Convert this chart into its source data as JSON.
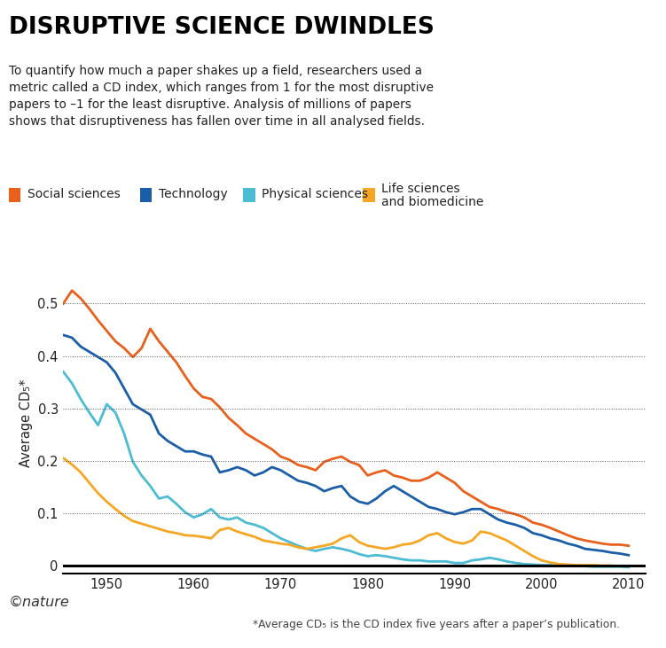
{
  "title": "DISRUPTIVE SCIENCE DWINDLES",
  "subtitle": "To quantify how much a paper shakes up a field, researchers used a\nmetric called a CD index, which ranges from 1 for the most disruptive\npapers to –1 for the least disruptive. Analysis of millions of papers\nshows that disruptiveness has fallen over time in all analysed fields.",
  "ylabel": "Average CD₅*",
  "footnote": "*Average CD₅ is the CD index five years after a paper’s publication.",
  "nature_credit": "©nature",
  "colors": {
    "social": "#E8601C",
    "technology": "#1A5EA8",
    "physical": "#4BBCD4",
    "life": "#F5A623"
  },
  "legend_labels": [
    "Social sciences",
    "Technology",
    "Physical sciences",
    "Life sciences\nand biomedicine"
  ],
  "xlim": [
    1945,
    2012
  ],
  "ylim": [
    -0.015,
    0.56
  ],
  "yticks": [
    0,
    0.1,
    0.2,
    0.3,
    0.4,
    0.5
  ],
  "xticks": [
    1950,
    1960,
    1970,
    1980,
    1990,
    2000,
    2010
  ],
  "social_x": [
    1945,
    1946,
    1947,
    1948,
    1949,
    1950,
    1951,
    1952,
    1953,
    1954,
    1955,
    1956,
    1957,
    1958,
    1959,
    1960,
    1961,
    1962,
    1963,
    1964,
    1965,
    1966,
    1967,
    1968,
    1969,
    1970,
    1971,
    1972,
    1973,
    1974,
    1975,
    1976,
    1977,
    1978,
    1979,
    1980,
    1981,
    1982,
    1983,
    1984,
    1985,
    1986,
    1987,
    1988,
    1989,
    1990,
    1991,
    1992,
    1993,
    1994,
    1995,
    1996,
    1997,
    1998,
    1999,
    2000,
    2001,
    2002,
    2003,
    2004,
    2005,
    2006,
    2007,
    2008,
    2009,
    2010
  ],
  "social_y": [
    0.5,
    0.525,
    0.51,
    0.49,
    0.468,
    0.448,
    0.428,
    0.415,
    0.398,
    0.415,
    0.452,
    0.428,
    0.408,
    0.388,
    0.362,
    0.338,
    0.322,
    0.318,
    0.302,
    0.282,
    0.268,
    0.252,
    0.242,
    0.232,
    0.222,
    0.208,
    0.202,
    0.192,
    0.188,
    0.182,
    0.198,
    0.204,
    0.208,
    0.198,
    0.192,
    0.172,
    0.178,
    0.182,
    0.172,
    0.168,
    0.162,
    0.162,
    0.168,
    0.178,
    0.168,
    0.158,
    0.142,
    0.132,
    0.122,
    0.112,
    0.108,
    0.102,
    0.098,
    0.092,
    0.082,
    0.078,
    0.072,
    0.065,
    0.058,
    0.052,
    0.048,
    0.045,
    0.042,
    0.04,
    0.04,
    0.038
  ],
  "tech_x": [
    1945,
    1946,
    1947,
    1948,
    1949,
    1950,
    1951,
    1952,
    1953,
    1954,
    1955,
    1956,
    1957,
    1958,
    1959,
    1960,
    1961,
    1962,
    1963,
    1964,
    1965,
    1966,
    1967,
    1968,
    1969,
    1970,
    1971,
    1972,
    1973,
    1974,
    1975,
    1976,
    1977,
    1978,
    1979,
    1980,
    1981,
    1982,
    1983,
    1984,
    1985,
    1986,
    1987,
    1988,
    1989,
    1990,
    1991,
    1992,
    1993,
    1994,
    1995,
    1996,
    1997,
    1998,
    1999,
    2000,
    2001,
    2002,
    2003,
    2004,
    2005,
    2006,
    2007,
    2008,
    2009,
    2010
  ],
  "tech_y": [
    0.44,
    0.435,
    0.418,
    0.408,
    0.398,
    0.388,
    0.368,
    0.338,
    0.308,
    0.298,
    0.288,
    0.252,
    0.238,
    0.228,
    0.218,
    0.218,
    0.212,
    0.208,
    0.178,
    0.182,
    0.188,
    0.182,
    0.172,
    0.178,
    0.188,
    0.182,
    0.172,
    0.162,
    0.158,
    0.152,
    0.142,
    0.148,
    0.152,
    0.132,
    0.122,
    0.118,
    0.128,
    0.142,
    0.152,
    0.142,
    0.132,
    0.122,
    0.112,
    0.108,
    0.102,
    0.098,
    0.102,
    0.108,
    0.108,
    0.098,
    0.088,
    0.082,
    0.078,
    0.072,
    0.062,
    0.058,
    0.052,
    0.048,
    0.042,
    0.038,
    0.032,
    0.03,
    0.028,
    0.025,
    0.023,
    0.02
  ],
  "physical_x": [
    1945,
    1946,
    1947,
    1948,
    1949,
    1950,
    1951,
    1952,
    1953,
    1954,
    1955,
    1956,
    1957,
    1958,
    1959,
    1960,
    1961,
    1962,
    1963,
    1964,
    1965,
    1966,
    1967,
    1968,
    1969,
    1970,
    1971,
    1972,
    1973,
    1974,
    1975,
    1976,
    1977,
    1978,
    1979,
    1980,
    1981,
    1982,
    1983,
    1984,
    1985,
    1986,
    1987,
    1988,
    1989,
    1990,
    1991,
    1992,
    1993,
    1994,
    1995,
    1996,
    1997,
    1998,
    1999,
    2000,
    2001,
    2002,
    2003,
    2004,
    2005,
    2006,
    2007,
    2008,
    2009,
    2010
  ],
  "physical_y": [
    0.37,
    0.348,
    0.318,
    0.292,
    0.268,
    0.308,
    0.292,
    0.252,
    0.198,
    0.172,
    0.152,
    0.128,
    0.132,
    0.118,
    0.102,
    0.092,
    0.098,
    0.108,
    0.092,
    0.088,
    0.092,
    0.082,
    0.078,
    0.072,
    0.062,
    0.052,
    0.045,
    0.038,
    0.032,
    0.028,
    0.032,
    0.035,
    0.032,
    0.028,
    0.022,
    0.018,
    0.02,
    0.018,
    0.015,
    0.012,
    0.01,
    0.01,
    0.008,
    0.008,
    0.008,
    0.005,
    0.005,
    0.01,
    0.012,
    0.015,
    0.012,
    0.008,
    0.005,
    0.003,
    0.002,
    0.001,
    0.001,
    0.0,
    0.0,
    -0.001,
    -0.001,
    -0.002,
    -0.002,
    -0.002,
    -0.002,
    -0.003
  ],
  "life_x": [
    1945,
    1946,
    1947,
    1948,
    1949,
    1950,
    1951,
    1952,
    1953,
    1954,
    1955,
    1956,
    1957,
    1958,
    1959,
    1960,
    1961,
    1962,
    1963,
    1964,
    1965,
    1966,
    1967,
    1968,
    1969,
    1970,
    1971,
    1972,
    1973,
    1974,
    1975,
    1976,
    1977,
    1978,
    1979,
    1980,
    1981,
    1982,
    1983,
    1984,
    1985,
    1986,
    1987,
    1988,
    1989,
    1990,
    1991,
    1992,
    1993,
    1994,
    1995,
    1996,
    1997,
    1998,
    1999,
    2000,
    2001,
    2002,
    2003,
    2004,
    2005,
    2006,
    2007,
    2008,
    2009,
    2010
  ],
  "life_y": [
    0.205,
    0.193,
    0.178,
    0.158,
    0.138,
    0.122,
    0.108,
    0.095,
    0.085,
    0.08,
    0.075,
    0.07,
    0.065,
    0.062,
    0.058,
    0.057,
    0.055,
    0.052,
    0.068,
    0.072,
    0.065,
    0.06,
    0.055,
    0.048,
    0.045,
    0.042,
    0.04,
    0.035,
    0.032,
    0.035,
    0.038,
    0.042,
    0.052,
    0.058,
    0.045,
    0.038,
    0.035,
    0.032,
    0.035,
    0.04,
    0.042,
    0.048,
    0.058,
    0.062,
    0.052,
    0.045,
    0.042,
    0.048,
    0.065,
    0.062,
    0.055,
    0.048,
    0.038,
    0.028,
    0.018,
    0.01,
    0.006,
    0.003,
    0.002,
    0.001,
    0.001,
    0.001,
    0.0,
    0.0,
    -0.001,
    -0.001
  ]
}
